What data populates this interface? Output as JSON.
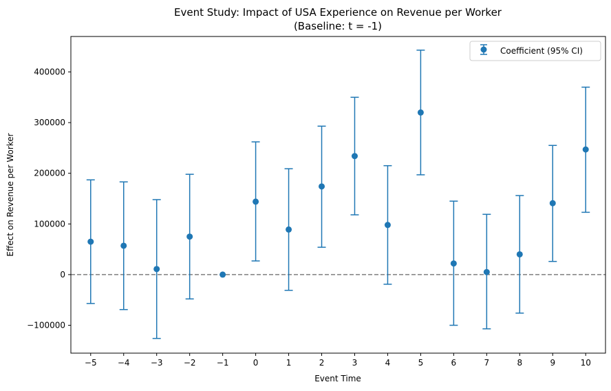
{
  "chart_data": {
    "type": "scatter",
    "title": "Event Study: Impact of USA Experience on Revenue per Worker",
    "subtitle": "(Baseline: t = -1)",
    "xlabel": "Event Time",
    "ylabel": "Effect on Revenue per Worker",
    "xlim": [
      -5.6,
      10.6
    ],
    "ylim": [
      -155000,
      470000
    ],
    "x_ticks": [
      -5,
      -4,
      -3,
      -2,
      -1,
      0,
      1,
      2,
      3,
      4,
      5,
      6,
      7,
      8,
      9,
      10
    ],
    "x_tick_labels": [
      "−5",
      "−4",
      "−3",
      "−2",
      "−1",
      "0",
      "1",
      "2",
      "3",
      "4",
      "5",
      "6",
      "7",
      "8",
      "9",
      "10"
    ],
    "y_ticks": [
      -100000,
      0,
      100000,
      200000,
      300000,
      400000
    ],
    "y_tick_labels": [
      "−100000",
      "0",
      "100000",
      "200000",
      "300000",
      "400000"
    ],
    "reference_line": {
      "y": 0,
      "style": "dashed",
      "color": "#7f7f7f"
    },
    "grid": false,
    "legend": {
      "position": "top-right",
      "label": "Coefficient (95% CI)"
    },
    "series": [
      {
        "name": "Coefficient (95% CI)",
        "color": "#1f77b4",
        "points": [
          {
            "x": -5,
            "y": 65000,
            "lower": -57000,
            "upper": 187000
          },
          {
            "x": -4,
            "y": 57000,
            "lower": -69000,
            "upper": 183000
          },
          {
            "x": -3,
            "y": 11000,
            "lower": -126000,
            "upper": 148000
          },
          {
            "x": -2,
            "y": 75000,
            "lower": -48000,
            "upper": 198000
          },
          {
            "x": -1,
            "y": 0,
            "lower": 0,
            "upper": 0
          },
          {
            "x": 0,
            "y": 144000,
            "lower": 27000,
            "upper": 262000
          },
          {
            "x": 1,
            "y": 89000,
            "lower": -31000,
            "upper": 209000
          },
          {
            "x": 2,
            "y": 174000,
            "lower": 54000,
            "upper": 293000
          },
          {
            "x": 3,
            "y": 234000,
            "lower": 118000,
            "upper": 350000
          },
          {
            "x": 4,
            "y": 98000,
            "lower": -19000,
            "upper": 215000
          },
          {
            "x": 5,
            "y": 320000,
            "lower": 197000,
            "upper": 443000
          },
          {
            "x": 6,
            "y": 22000,
            "lower": -100000,
            "upper": 145000
          },
          {
            "x": 7,
            "y": 5000,
            "lower": -107000,
            "upper": 119000
          },
          {
            "x": 8,
            "y": 40000,
            "lower": -76000,
            "upper": 156000
          },
          {
            "x": 9,
            "y": 141000,
            "lower": 26000,
            "upper": 255000
          },
          {
            "x": 10,
            "y": 247000,
            "lower": 123000,
            "upper": 370000
          }
        ]
      }
    ]
  }
}
